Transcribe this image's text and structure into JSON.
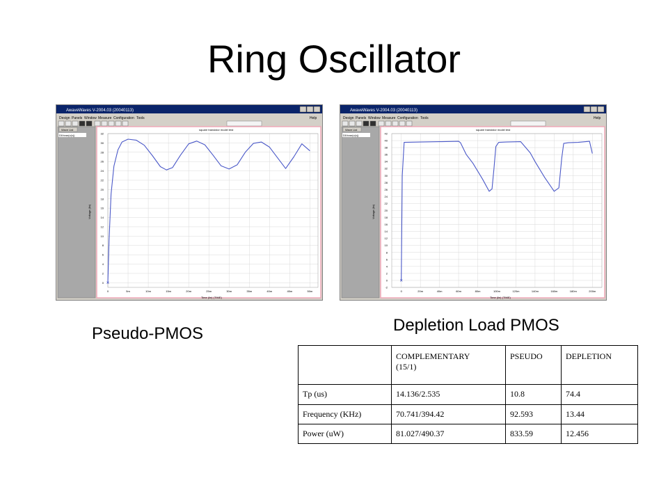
{
  "slide": {
    "title": "Ring Oscillator",
    "caption_left": "Pseudo-PMOS",
    "caption_right": "Depletion Load PMOS"
  },
  "windows": {
    "left": {
      "title": "AwaveWaves V-2004.03 (20040113)",
      "menu": [
        "Design",
        "Panels",
        "Window",
        "Measure",
        "Configuration",
        "Tools"
      ],
      "menu_help": "Help",
      "wave_list_label": "Wave List",
      "wave_item": "D0:tran(v(x))",
      "plot_title": "square transistor model test",
      "xlabel": "Time (lin) (TIME)",
      "ylabel": "Voltage (lin)",
      "xticks": [
        "0",
        "5m",
        "10m",
        "15m",
        "20m",
        "25m",
        "30m",
        "35m",
        "40m",
        "45m",
        "50m"
      ],
      "yticks": [
        "0",
        "2",
        "4",
        "6",
        "8",
        "10",
        "12",
        "14",
        "16",
        "18",
        "20",
        "22",
        "24",
        "26",
        "28",
        "30",
        "32"
      ]
    },
    "right": {
      "title": "AwaveWaves V-2004.03 (20040113)",
      "menu": [
        "Design",
        "Panels",
        "Window",
        "Measure",
        "Configuration",
        "Tools"
      ],
      "menu_help": "Help",
      "wave_list_label": "Wave List",
      "wave_item": "D0:tran(v(x))",
      "plot_title": "square transistor model test",
      "xlabel": "Time (lin) (TIME)",
      "ylabel": "Voltage (lin)",
      "xticks": [
        "0",
        "20m",
        "40m",
        "60m",
        "80m",
        "100m",
        "120m",
        "140m",
        "160m",
        "180m",
        "200m"
      ],
      "yticks": [
        "-2",
        "0",
        "2",
        "4",
        "6",
        "8",
        "10",
        "12",
        "14",
        "16",
        "18",
        "20",
        "22",
        "24",
        "26",
        "28",
        "30",
        "32",
        "34",
        "36",
        "38",
        "40",
        "42"
      ]
    }
  },
  "chart_data": [
    {
      "type": "line",
      "title": "square transistor model test",
      "xlabel": "Time (lin) (TIME)",
      "ylabel": "Voltage (lin)",
      "xlim": [
        0,
        52
      ],
      "ylim": [
        -1,
        32
      ],
      "grid": true,
      "series": [
        {
          "x": [
            0,
            0.3,
            0.8,
            1.5,
            2.5,
            3.5,
            5,
            7,
            9,
            11,
            13,
            14.5,
            16,
            18,
            20,
            22,
            24,
            26,
            28,
            30,
            32,
            34,
            36,
            38,
            40,
            42,
            44,
            46,
            48,
            50
          ],
          "y": [
            0,
            9,
            19,
            25,
            28.5,
            30.2,
            30.8,
            30.6,
            29.5,
            27.3,
            24.9,
            24.2,
            24.7,
            27.4,
            29.8,
            30.4,
            29.6,
            27.4,
            25.1,
            24.4,
            25.3,
            28,
            29.9,
            30.2,
            29.1,
            26.8,
            24.5,
            27,
            29.8,
            28.3
          ]
        }
      ]
    },
    {
      "type": "line",
      "title": "square transistor model test",
      "xlabel": "Time (lin) (TIME)",
      "ylabel": "Voltage (lin)",
      "xlim": [
        -10,
        210
      ],
      "ylim": [
        -2,
        42
      ],
      "grid": true,
      "series": [
        {
          "x": [
            0,
            1,
            3,
            20,
            40,
            60,
            62,
            68,
            75,
            85,
            92,
            95,
            97,
            99,
            102,
            110,
            125,
            135,
            140,
            150,
            160,
            165,
            168,
            170,
            175,
            185,
            197,
            200
          ],
          "y": [
            0,
            30,
            39.5,
            39.6,
            39.7,
            39.8,
            39.4,
            36,
            33.5,
            29,
            25.5,
            26.2,
            32,
            38.3,
            39.5,
            39.6,
            39.7,
            36.5,
            34,
            29.5,
            25.5,
            26.5,
            35,
            39.2,
            39.4,
            39.5,
            39.8,
            36.3
          ]
        }
      ]
    },
    {
      "type": "table",
      "columns": [
        "",
        "COMPLEMENTARY (15/1)",
        "PSEUDO",
        "DEPLETION"
      ],
      "rows": [
        [
          "Tp (us)",
          "14.136/2.535",
          "10.8",
          "74.4"
        ],
        [
          "Frequency (KHz)",
          "70.741/394.42",
          "92.593",
          "13.44"
        ],
        [
          "Power (uW)",
          "81.027/490.37",
          "833.59",
          "12.456"
        ]
      ]
    }
  ],
  "colors": {
    "titlebar": "#0a246a",
    "window_face": "#d4d0c8",
    "plot_border": "#f0a8b8",
    "trace": "#4a58c8",
    "grid": "#d8d8d8"
  },
  "table": {
    "header": [
      "",
      "COMPLEMENTARY\n(15/1)",
      "PSEUDO",
      "DEPLETION"
    ],
    "rows": [
      {
        "label": "Tp (us)",
        "comp": "14.136/2.535",
        "pseudo": "10.8",
        "depl": "74.4"
      },
      {
        "label": "Frequency (KHz)",
        "comp": "70.741/394.42",
        "pseudo": "92.593",
        "depl": "13.44"
      },
      {
        "label": "Power (uW)",
        "comp": "81.027/490.37",
        "pseudo": "833.59",
        "depl": "12.456"
      }
    ]
  }
}
